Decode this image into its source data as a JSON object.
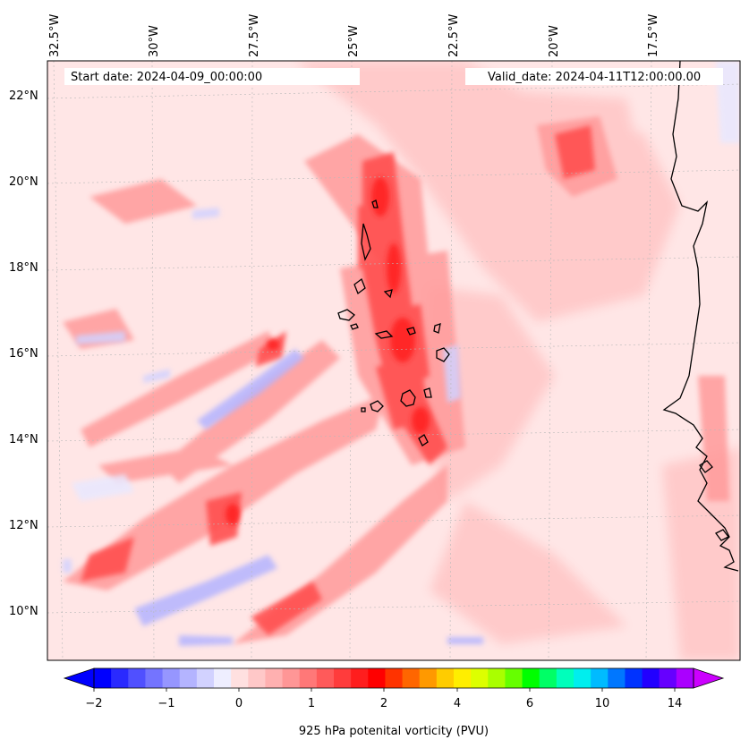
{
  "map": {
    "lon_labels": [
      "32.5°W",
      "30°W",
      "27.5°W",
      "25°W",
      "22.5°W",
      "20°W",
      "17.5°W"
    ],
    "lat_labels": [
      "22°N",
      "20°N",
      "18°N",
      "16°N",
      "14°N",
      "12°N",
      "10°N"
    ],
    "start_date_text": "Start date: 2024-04-09_00:00:00",
    "valid_date_text": "Valid_date: 2024-04-11T12:00:00.00",
    "field_colors": {
      "background": "#ffe6e6",
      "light": "#ffc8c8",
      "medium": "#ff9a9a",
      "strong": "#ff5a5a",
      "max": "#ff2222",
      "negative_light": "#e8e8ff",
      "negative": "#b4b4ff",
      "negative_strong": "#7a7aff"
    }
  },
  "colorbar": {
    "label": "925 hPa potenital vorticity (PVU)",
    "tick_labels": [
      "−2",
      "−1",
      "0",
      "1",
      "2",
      "4",
      "6",
      "10",
      "14"
    ],
    "colors": [
      "#0000ff",
      "#2a2aff",
      "#5050ff",
      "#7474ff",
      "#9696ff",
      "#b4b4ff",
      "#d2d2ff",
      "#eeeeff",
      "#ffe0e0",
      "#ffc8c8",
      "#ffb0b0",
      "#ff9696",
      "#ff7878",
      "#ff5a5a",
      "#ff3c3c",
      "#ff1e1e",
      "#ff0000",
      "#ff3300",
      "#ff6600",
      "#ff9900",
      "#ffcc00",
      "#ffee00",
      "#ddff00",
      "#aaff00",
      "#66ff00",
      "#00ff00",
      "#00ff66",
      "#00ffbb",
      "#00eeee",
      "#00bbff",
      "#0077ff",
      "#0033ff",
      "#2200ff",
      "#6600ff",
      "#aa00ff"
    ],
    "under_color": "#0000ff",
    "over_color": "#cc00ff"
  }
}
